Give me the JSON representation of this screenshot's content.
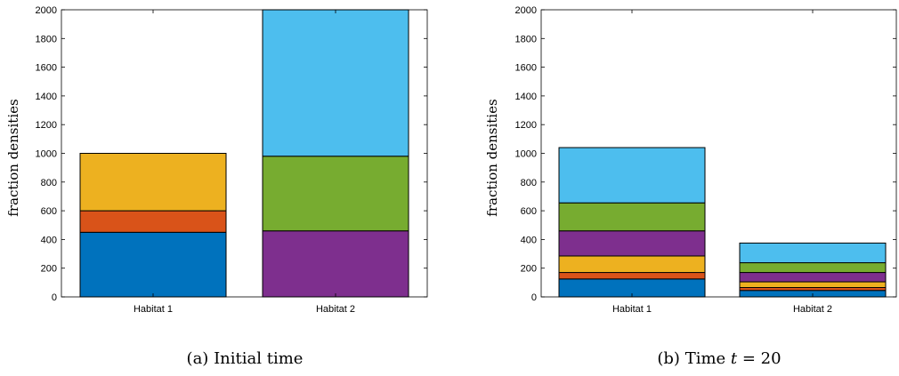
{
  "chart_data": [
    {
      "type": "bar",
      "stacked": true,
      "categories": [
        "Habitat 1",
        "Habitat 2"
      ],
      "ylabel": "fraction densities",
      "ylim": [
        0,
        2000
      ],
      "yticks": [
        "0",
        "200",
        "400",
        "600",
        "800",
        "1000",
        "1200",
        "1400",
        "1600",
        "1800",
        "2000"
      ],
      "caption_prefix": "(a)",
      "caption_text": "Initial time",
      "segments": [
        {
          "category": "Habitat 1",
          "color": "#0072BD",
          "value": 450
        },
        {
          "category": "Habitat 1",
          "color": "#D95319",
          "value": 150
        },
        {
          "category": "Habitat 1",
          "color": "#EDB120",
          "value": 400
        },
        {
          "category": "Habitat 2",
          "color": "#7E2F8E",
          "value": 460
        },
        {
          "category": "Habitat 2",
          "color": "#77AC30",
          "value": 520
        },
        {
          "category": "Habitat 2",
          "color": "#4DBEEE",
          "value": 1020
        }
      ]
    },
    {
      "type": "bar",
      "stacked": true,
      "categories": [
        "Habitat 1",
        "Habitat 2"
      ],
      "ylabel": "fraction densities",
      "ylim": [
        0,
        2000
      ],
      "yticks": [
        "0",
        "200",
        "400",
        "600",
        "800",
        "1000",
        "1200",
        "1400",
        "1600",
        "1800",
        "2000"
      ],
      "caption_prefix": "(b)",
      "caption_text": "Time",
      "caption_math_var": "t",
      "caption_math_rest": " = 20",
      "segments": [
        {
          "category": "Habitat 1",
          "color": "#0072BD",
          "value": 125
        },
        {
          "category": "Habitat 1",
          "color": "#D95319",
          "value": 45
        },
        {
          "category": "Habitat 1",
          "color": "#EDB120",
          "value": 115
        },
        {
          "category": "Habitat 1",
          "color": "#7E2F8E",
          "value": 175
        },
        {
          "category": "Habitat 1",
          "color": "#77AC30",
          "value": 195
        },
        {
          "category": "Habitat 1",
          "color": "#4DBEEE",
          "value": 385
        },
        {
          "category": "Habitat 2",
          "color": "#0072BD",
          "value": 45
        },
        {
          "category": "Habitat 2",
          "color": "#D95319",
          "value": 20
        },
        {
          "category": "Habitat 2",
          "color": "#EDB120",
          "value": 40
        },
        {
          "category": "Habitat 2",
          "color": "#7E2F8E",
          "value": 65
        },
        {
          "category": "Habitat 2",
          "color": "#77AC30",
          "value": 68
        },
        {
          "category": "Habitat 2",
          "color": "#4DBEEE",
          "value": 137
        }
      ]
    }
  ]
}
